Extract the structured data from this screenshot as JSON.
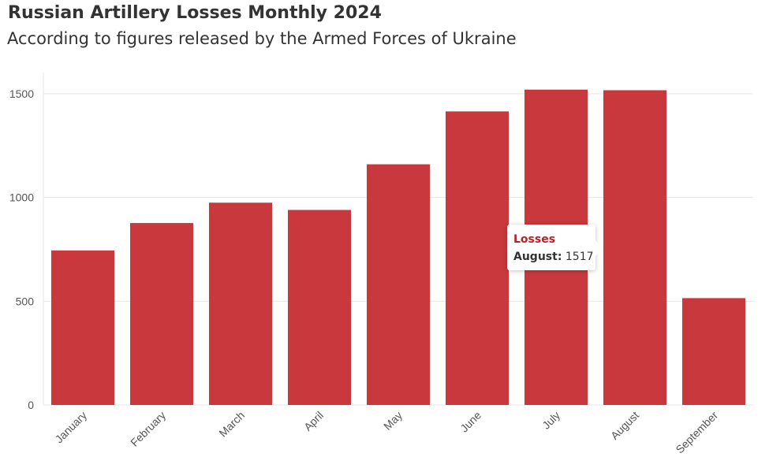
{
  "header": {
    "title": "Russian Artillery Losses Monthly 2024",
    "subtitle": "According to figures released by the Armed Forces of Ukraine"
  },
  "colors": {
    "bar": "#c9383c",
    "grid": "#e6e6e6",
    "tooltip_series": "#b5222a"
  },
  "tooltip": {
    "series_name": "Losses",
    "category": "August:",
    "value": "1517"
  },
  "chart_data": {
    "type": "bar",
    "categories": [
      "January",
      "February",
      "March",
      "April",
      "May",
      "June",
      "July",
      "August",
      "September"
    ],
    "series": [
      {
        "name": "Losses",
        "values": [
          745,
          877,
          975,
          940,
          1160,
          1415,
          1520,
          1517,
          515
        ]
      }
    ],
    "title": "Russian Artillery Losses Monthly 2024",
    "subtitle": "According to figures released by the Armed Forces of Ukraine",
    "xlabel": "",
    "ylabel": "",
    "ylim": [
      0,
      1600
    ],
    "yticks": [
      0,
      500,
      1000,
      1500
    ],
    "grid": true,
    "legend": "none"
  }
}
